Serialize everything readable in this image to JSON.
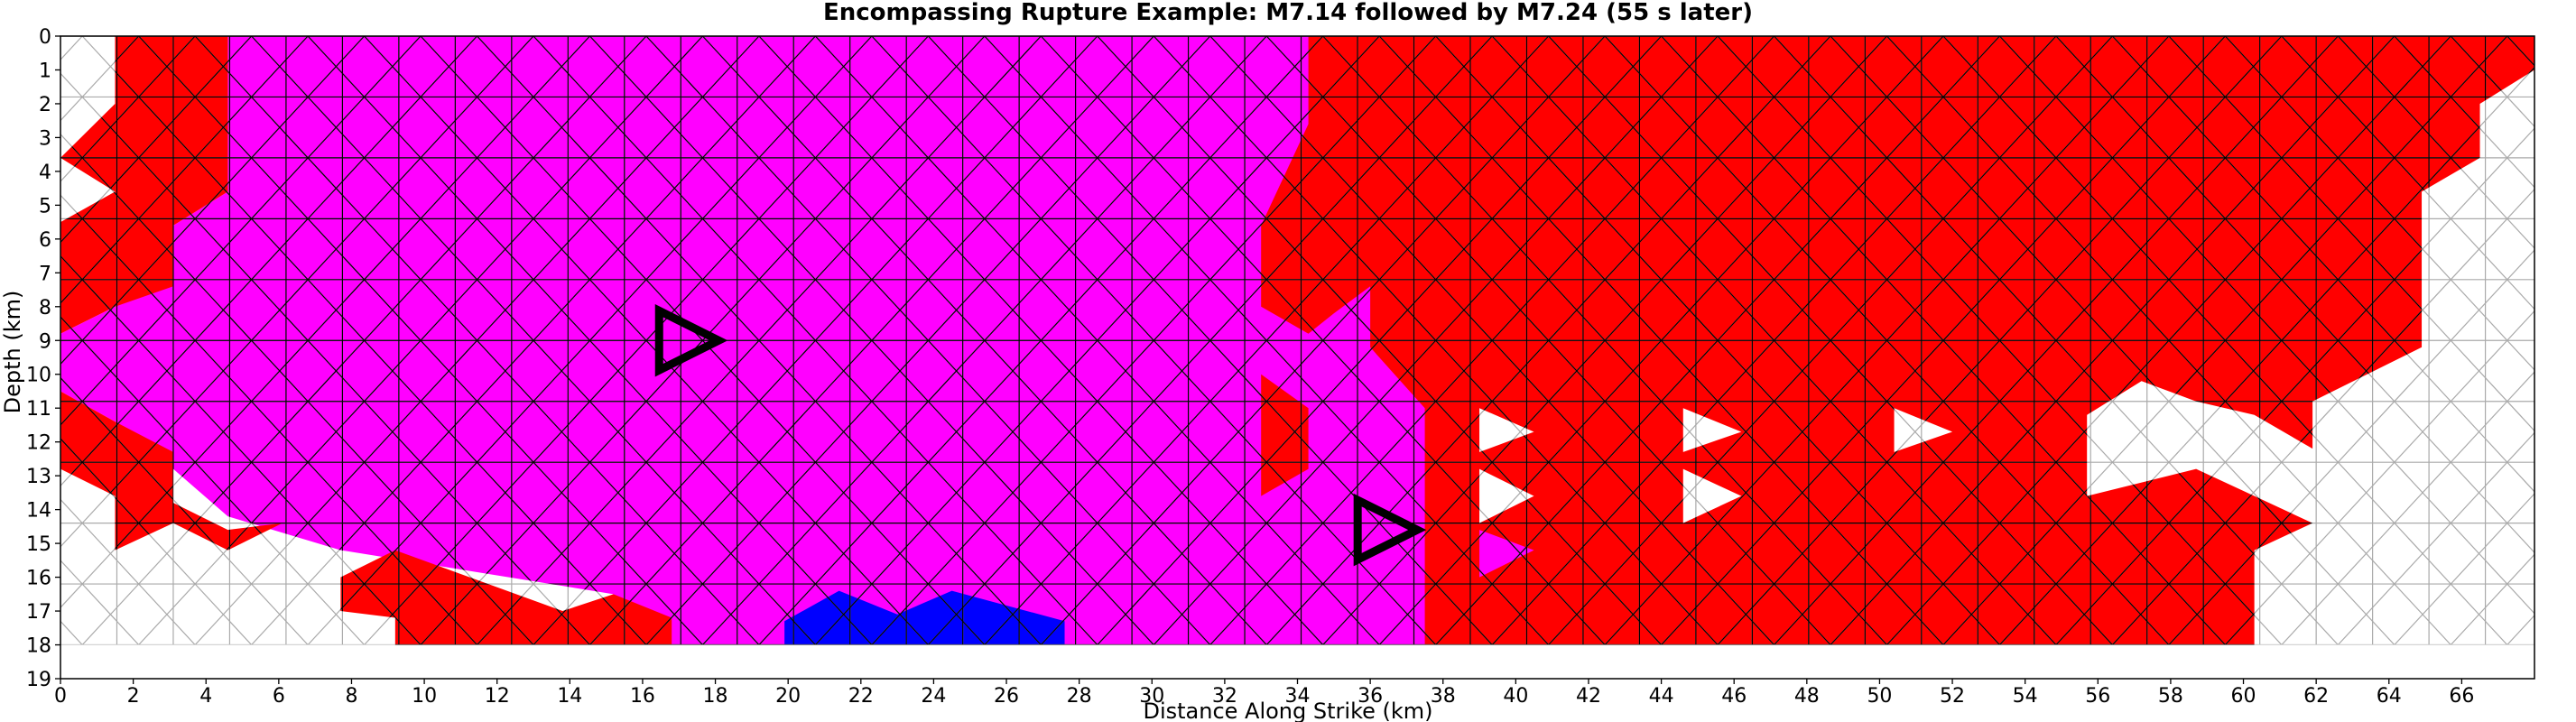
{
  "chart_data": {
    "type": "heatmap",
    "title": "Encompassing Rupture Example: M7.14 followed by M7.24 (55 s later)",
    "xlabel": "Distance Along Strike (km)",
    "ylabel": "Depth (km)",
    "xlim": [
      0,
      68
    ],
    "ylim": [
      19,
      0
    ],
    "x_ticks": [
      0,
      2,
      4,
      6,
      8,
      10,
      12,
      14,
      16,
      18,
      20,
      22,
      24,
      26,
      28,
      30,
      32,
      34,
      36,
      38,
      40,
      42,
      44,
      46,
      48,
      50,
      52,
      54,
      56,
      58,
      60,
      62,
      64,
      66
    ],
    "y_ticks": [
      0,
      1,
      2,
      3,
      4,
      5,
      6,
      7,
      8,
      9,
      10,
      11,
      12,
      13,
      14,
      15,
      16,
      17,
      18,
      19
    ],
    "mesh_bottom_depth_km": 18,
    "colors": {
      "first_event": "#ff0000",
      "both_events": "#ff00ff",
      "second_event": "#0000ff",
      "unruptured": "#ffffff",
      "mesh_line_ruptured": "#000000",
      "mesh_line_unruptured": "#aaaaaa",
      "hypocenter_marker": "#000000"
    },
    "regions": [
      {
        "class": "both_events",
        "polygon": [
          [
            4.6,
            0
          ],
          [
            46,
            0
          ],
          [
            46,
            18
          ],
          [
            16.8,
            18
          ],
          [
            15.2,
            16.5
          ],
          [
            7.7,
            15.2
          ],
          [
            4.6,
            14.2
          ],
          [
            3.1,
            12.8
          ],
          [
            1.5,
            11.4
          ],
          [
            0,
            10.5
          ],
          [
            0,
            8.8
          ],
          [
            1.5,
            8.0
          ],
          [
            3.1,
            5.6
          ],
          [
            4.6,
            4.6
          ]
        ]
      },
      {
        "class": "first_event",
        "polygon": [
          [
            1.5,
            0
          ],
          [
            4.6,
            0
          ],
          [
            4.6,
            4.6
          ],
          [
            3.1,
            5.6
          ],
          [
            3.1,
            7.4
          ],
          [
            1.5,
            8.0
          ],
          [
            0,
            8.8
          ],
          [
            0,
            5.5
          ],
          [
            1.5,
            4.6
          ],
          [
            0,
            3.6
          ],
          [
            1.5,
            2.0
          ]
        ]
      },
      {
        "class": "first_event",
        "polygon": [
          [
            0,
            10.5
          ],
          [
            1.5,
            11.4
          ],
          [
            3.1,
            12.3
          ],
          [
            3.1,
            13.8
          ],
          [
            4.6,
            14.6
          ],
          [
            6.1,
            14.4
          ],
          [
            4.6,
            15.2
          ],
          [
            3.1,
            14.4
          ],
          [
            1.5,
            15.2
          ],
          [
            1.5,
            13.6
          ],
          [
            0,
            12.8
          ]
        ]
      },
      {
        "class": "first_event",
        "polygon": [
          [
            9.2,
            15.2
          ],
          [
            13.8,
            17.0
          ],
          [
            15.2,
            16.5
          ],
          [
            16.8,
            17.2
          ],
          [
            16.8,
            18
          ],
          [
            9.2,
            18
          ],
          [
            9.2,
            17.2
          ],
          [
            7.7,
            17.0
          ],
          [
            7.7,
            16.0
          ]
        ]
      },
      {
        "class": "second_event",
        "polygon": [
          [
            19.9,
            17.3
          ],
          [
            21.4,
            16.4
          ],
          [
            23.0,
            17.1
          ],
          [
            24.5,
            16.4
          ],
          [
            27.6,
            17.3
          ],
          [
            27.6,
            18
          ],
          [
            19.9,
            18
          ]
        ]
      },
      {
        "class": "first_event",
        "polygon": [
          [
            34.3,
            0
          ],
          [
            68,
            0
          ],
          [
            68,
            1.0
          ],
          [
            66.5,
            2.0
          ],
          [
            66.5,
            3.6
          ],
          [
            64.9,
            4.6
          ],
          [
            64.9,
            9.2
          ],
          [
            63.4,
            10.0
          ],
          [
            61.9,
            10.8
          ],
          [
            61.9,
            12.2
          ],
          [
            60.3,
            11.2
          ],
          [
            58.7,
            10.8
          ],
          [
            57.2,
            10.2
          ],
          [
            55.7,
            11.2
          ],
          [
            55.7,
            13.6
          ],
          [
            58.7,
            12.8
          ],
          [
            61.9,
            14.4
          ],
          [
            60.3,
            15.2
          ],
          [
            60.3,
            18
          ],
          [
            37.5,
            18
          ],
          [
            37.5,
            11.0
          ],
          [
            36.0,
            9.2
          ],
          [
            36.0,
            7.4
          ],
          [
            35.0,
            8.2
          ],
          [
            34.3,
            8.8
          ],
          [
            33.0,
            8.0
          ],
          [
            33.0,
            5.6
          ],
          [
            34.3,
            2.6
          ]
        ]
      },
      {
        "class": "first_event",
        "polygon": [
          [
            33.0,
            10.0
          ],
          [
            34.3,
            11.0
          ],
          [
            34.3,
            12.8
          ],
          [
            33.0,
            13.6
          ]
        ]
      },
      {
        "class": "unruptured",
        "polygon": [
          [
            39.0,
            11.0
          ],
          [
            40.5,
            11.7
          ],
          [
            39.0,
            12.3
          ]
        ]
      },
      {
        "class": "unruptured",
        "polygon": [
          [
            39.0,
            12.8
          ],
          [
            40.5,
            13.6
          ],
          [
            39.0,
            14.4
          ]
        ]
      },
      {
        "class": "unruptured",
        "polygon": [
          [
            44.6,
            11.0
          ],
          [
            46.2,
            11.7
          ],
          [
            44.6,
            12.3
          ]
        ]
      },
      {
        "class": "unruptured",
        "polygon": [
          [
            44.6,
            12.8
          ],
          [
            46.2,
            13.6
          ],
          [
            44.6,
            14.4
          ]
        ]
      },
      {
        "class": "unruptured",
        "polygon": [
          [
            50.4,
            11.0
          ],
          [
            52.0,
            11.7
          ],
          [
            50.4,
            12.3
          ]
        ]
      },
      {
        "class": "both_events",
        "polygon": [
          [
            39.0,
            14.6
          ],
          [
            40.5,
            15.2
          ],
          [
            39.0,
            16.0
          ]
        ]
      }
    ],
    "hypocenters": [
      {
        "event": "M7.14",
        "x": 17.0,
        "y": 9.0
      },
      {
        "event": "M7.24",
        "x": 36.2,
        "y": 14.6
      }
    ]
  }
}
